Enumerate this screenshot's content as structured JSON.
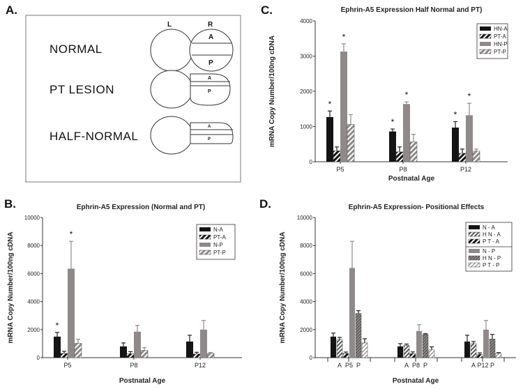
{
  "panel_labels": [
    "A.",
    "B.",
    "C.",
    "D."
  ],
  "diagram": {
    "left_label": "L",
    "right_label": "R",
    "rows": [
      {
        "label": "NORMAL",
        "anterior": "A",
        "posterior": "P"
      },
      {
        "label": "PT LESION",
        "anterior": "A",
        "posterior": "P"
      },
      {
        "label": "HALF-NORMAL",
        "anterior": "A",
        "posterior": "P"
      }
    ]
  },
  "colors": {
    "solid": "#141414",
    "gray": "#8f8a89",
    "axis": "#333333"
  },
  "chart_data": [
    {
      "id": "C",
      "type": "bar",
      "title": "Ephrin-A5 Expression Half Normal and PT)",
      "xlabel": "Postnatal Age",
      "ylabel": "mRNA Copy Number/100ng cDNA",
      "ylim": [
        0,
        4000
      ],
      "yticks": [
        0,
        1000,
        2000,
        3000,
        4000
      ],
      "categories": [
        "P5",
        "P8",
        "P12"
      ],
      "legend_position": "top-right",
      "series": [
        {
          "name": "HN-A",
          "style": "solid",
          "values": [
            1270,
            860,
            970
          ],
          "errors": [
            170,
            70,
            170
          ],
          "significant": [
            true,
            true,
            true
          ]
        },
        {
          "name": "PT-A",
          "style": "solid-hatch",
          "values": [
            310,
            280,
            240
          ],
          "errors": [
            110,
            140,
            120
          ],
          "significant": [
            false,
            false,
            false
          ]
        },
        {
          "name": "HN-P",
          "style": "gray",
          "values": [
            3130,
            1640,
            1320
          ],
          "errors": [
            220,
            60,
            340
          ],
          "significant": [
            true,
            true,
            true
          ]
        },
        {
          "name": "PT-P",
          "style": "gray-hatch",
          "values": [
            1060,
            560,
            300
          ],
          "errors": [
            280,
            220,
            60
          ],
          "significant": [
            false,
            false,
            false
          ]
        }
      ],
      "star_symbol": "*"
    },
    {
      "id": "B",
      "type": "bar",
      "title": "Ephrin-A5 Expression (Normal and PT)",
      "xlabel": "Postnatal Age",
      "ylabel": "mRNA Copy Number/100ng cDNA",
      "ylim": [
        0,
        10000
      ],
      "yticks": [
        0,
        2000,
        4000,
        6000,
        8000,
        10000
      ],
      "categories": [
        "P5",
        "P8",
        "P12"
      ],
      "legend_position": "top-right",
      "series": [
        {
          "name": "N-A",
          "style": "solid",
          "values": [
            1500,
            800,
            1150
          ],
          "errors": [
            300,
            250,
            450
          ],
          "significant": [
            true,
            false,
            false
          ]
        },
        {
          "name": "PT-A",
          "style": "solid-hatch",
          "values": [
            300,
            280,
            260
          ],
          "errors": [
            150,
            150,
            120
          ],
          "significant": [
            false,
            false,
            false
          ]
        },
        {
          "name": "N-P",
          "style": "gray",
          "values": [
            6350,
            1850,
            2000
          ],
          "errors": [
            1950,
            450,
            650
          ],
          "significant": [
            true,
            false,
            false
          ]
        },
        {
          "name": "PT-P",
          "style": "gray-hatch",
          "values": [
            1020,
            520,
            300
          ],
          "errors": [
            300,
            200,
            70
          ],
          "significant": [
            false,
            false,
            false
          ]
        }
      ],
      "star_symbol": "*"
    },
    {
      "id": "D",
      "type": "bar",
      "title": "Ephrin-A5 Expression- Positional Effects",
      "xlabel": "Postnatal Age",
      "ylabel": "mRNA Copy Number/100ng cDNA",
      "ylim": [
        0,
        10000
      ],
      "yticks": [
        0,
        2000,
        4000,
        6000,
        8000,
        10000
      ],
      "categories": [
        "P5",
        "P8",
        "P12"
      ],
      "sub_labels": [
        "A",
        "P"
      ],
      "legend_position": "top-right",
      "series": [
        {
          "name": "N - A",
          "style": "solid",
          "values": [
            1500,
            800,
            1150
          ],
          "errors": [
            250,
            200,
            450
          ]
        },
        {
          "name": "H N - A",
          "style": "solid-hatch-light",
          "values": [
            1300,
            870,
            1000
          ],
          "errors": [
            150,
            100,
            150
          ]
        },
        {
          "name": "P T - A",
          "style": "solid-hatch",
          "values": [
            300,
            280,
            240
          ],
          "errors": [
            100,
            130,
            100
          ]
        },
        {
          "name": "N - P",
          "style": "gray",
          "values": [
            6400,
            1900,
            2000
          ],
          "errors": [
            1900,
            450,
            650
          ]
        },
        {
          "name": "H N - P",
          "style": "gray-hatch-dense",
          "values": [
            3150,
            1650,
            1330
          ],
          "errors": [
            200,
            60,
            330
          ]
        },
        {
          "name": "P T - P",
          "style": "white-hatch",
          "values": [
            1050,
            550,
            300
          ],
          "errors": [
            300,
            220,
            60
          ]
        }
      ]
    }
  ]
}
